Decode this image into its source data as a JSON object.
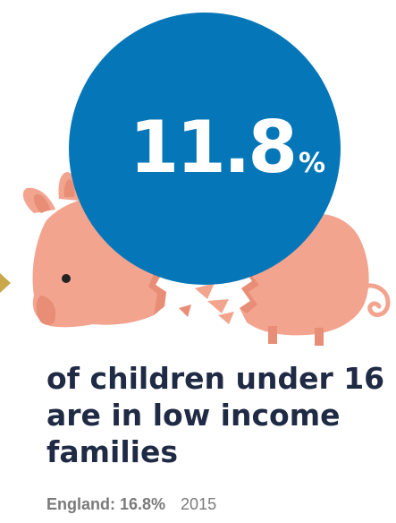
{
  "stat": {
    "value": "11.8",
    "unit": "%"
  },
  "caption": {
    "lines": [
      "of children under 16",
      "are in low income",
      "families"
    ]
  },
  "footer": {
    "comparison": "England: 16.8%",
    "year": "2015"
  },
  "icons": [
    "broken-piggy-bank-icon",
    "arrow-icon"
  ],
  "colors": {
    "circle": "#0577b8",
    "piggy": "#f3a48f",
    "piggy_shadow": "#e88d76",
    "caption_text": "#1f2a44",
    "footer_text": "#7a7a7a",
    "arrow": "#c8a84a"
  }
}
